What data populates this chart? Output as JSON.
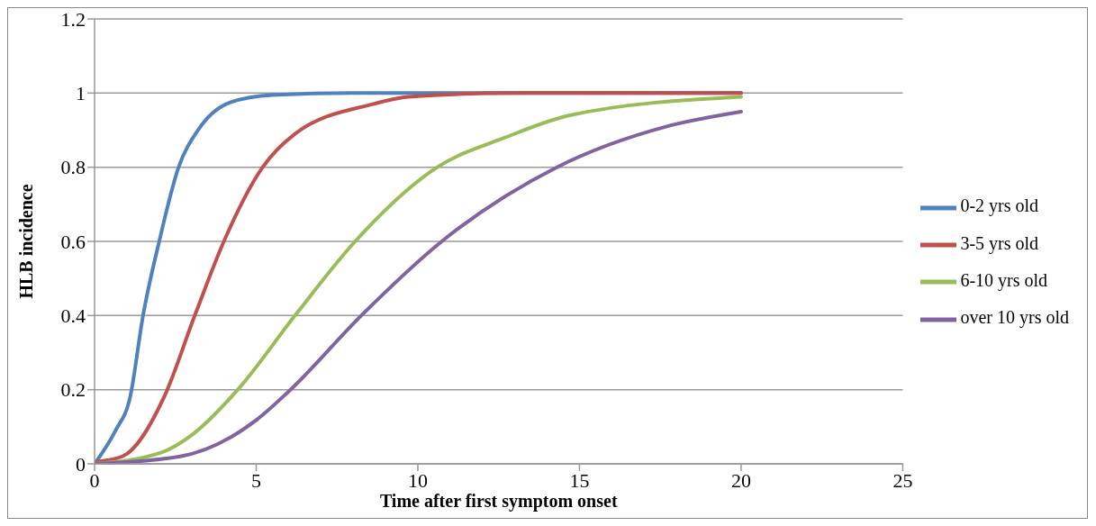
{
  "chart_data": {
    "type": "line",
    "xlabel": "Time after first symptom onset",
    "ylabel": "HLB incidence",
    "xlim": [
      0,
      25
    ],
    "xticks": [
      0,
      5,
      10,
      15,
      20,
      25
    ],
    "ylim": [
      0,
      1.2
    ],
    "yticks": [
      0,
      0.2,
      0.4,
      0.6,
      0.8,
      1,
      1.2
    ],
    "grid": "y",
    "legend": "right",
    "marker": "none",
    "line_style": "solid",
    "series": [
      {
        "name": "0-2 yrs old",
        "color": "#4f81bd",
        "x": [
          0,
          0.65,
          1.1,
          1.5,
          2,
          2.6,
          3.2,
          4.2,
          5.5,
          8,
          20
        ],
        "values": [
          0,
          0.09,
          0.18,
          0.4,
          0.6,
          0.8,
          0.9,
          0.975,
          0.995,
          1,
          1
        ]
      },
      {
        "name": "3-5 yrs old",
        "color": "#c0504d",
        "x": [
          0,
          0.86,
          2.15,
          3.1,
          4,
          5.2,
          6.2,
          8.6,
          9.7,
          13,
          20
        ],
        "values": [
          0.005,
          0.02,
          0.18,
          0.4,
          0.6,
          0.8,
          0.89,
          0.97,
          0.99,
          1,
          1
        ]
      },
      {
        "name": "6-10 yrs old",
        "color": "#9bbb59",
        "x": [
          0,
          2.05,
          3.04,
          4.43,
          6.2,
          8.06,
          10.6,
          12.7,
          14.7,
          20
        ],
        "values": [
          0,
          0.03,
          0.08,
          0.2,
          0.4,
          0.6,
          0.8,
          0.88,
          0.94,
          0.99
        ]
      },
      {
        "name": "over 10 yrs old",
        "color": "#8064a2",
        "x": [
          0,
          2.65,
          5.03,
          6,
          8.25,
          10.74,
          14.3,
          17.7,
          20
        ],
        "values": [
          0,
          0.02,
          0.12,
          0.195,
          0.4,
          0.6,
          0.8,
          0.91,
          0.95
        ]
      }
    ]
  }
}
